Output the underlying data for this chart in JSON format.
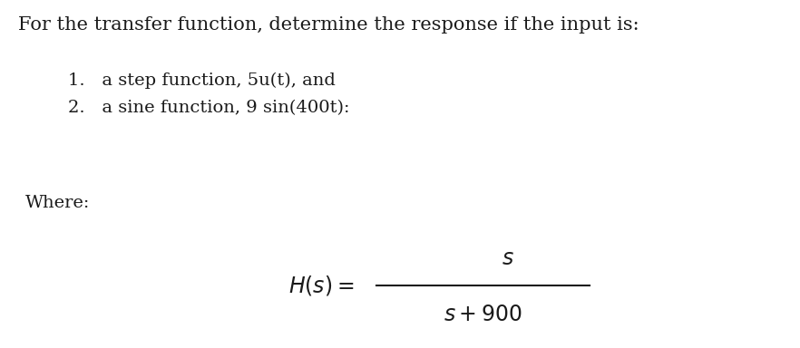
{
  "background_color": "#ffffff",
  "title_text": "For the transfer function, determine the response if the input is:",
  "title_fontsize": 15,
  "item1_text": "1.   a step function, 5u(t), and",
  "item2_text": "2.   a sine function, 9 sin(400t):",
  "items_fontsize": 14,
  "where_text": "Where:",
  "where_fontsize": 14,
  "formula_fontsize": 17,
  "text_color": "#1a1a1a"
}
